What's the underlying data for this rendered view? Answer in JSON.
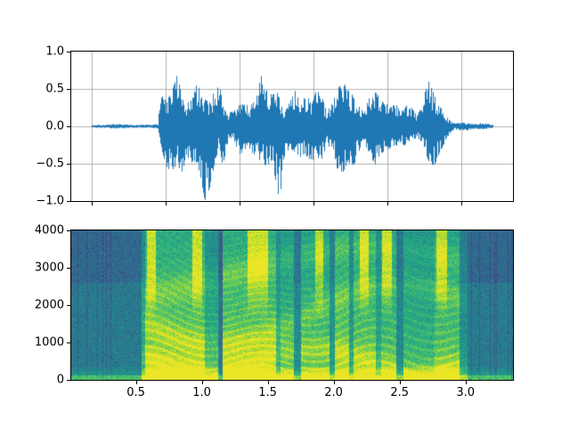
{
  "figure": {
    "background": "#ffffff",
    "waveform_color": "#1f77b4",
    "grid_color": "#b0b0b0",
    "spine_color": "#000000",
    "tick_label_color": "#000000"
  },
  "chart_data": [
    {
      "type": "line",
      "title": "",
      "xlabel": "",
      "ylabel": "",
      "description": "speech audio waveform, amplitude vs sample index",
      "line_color": "#1f77b4",
      "grid": true,
      "x_axis": {
        "ticks": [
          0,
          10000,
          20000,
          30000,
          40000,
          50000
        ],
        "tick_labels_visible": false,
        "n_samples": 54320,
        "margin": 0.05
      },
      "y_axis": {
        "ticks": [
          1.0,
          0.5,
          0.0,
          -0.5,
          -1.0
        ],
        "tick_labels": [
          "1.0",
          "0.5",
          "0.0",
          "−0.5",
          "−1.0"
        ],
        "ylim": [
          -1.0,
          1.0
        ],
        "grid_values": [
          0.5,
          0.0,
          -0.5
        ]
      },
      "envelope": {
        "duration_s": 3.39,
        "t": [
          0.0,
          0.1,
          0.2,
          0.35,
          0.5,
          0.56,
          0.59,
          0.63,
          0.68,
          0.72,
          0.76,
          0.8,
          0.84,
          0.88,
          0.93,
          0.96,
          1.0,
          1.04,
          1.08,
          1.11,
          1.15,
          1.2,
          1.24,
          1.29,
          1.34,
          1.39,
          1.43,
          1.48,
          1.52,
          1.57,
          1.6,
          1.63,
          1.68,
          1.72,
          1.77,
          1.81,
          1.86,
          1.9,
          1.94,
          1.98,
          2.03,
          2.07,
          2.12,
          2.16,
          2.21,
          2.25,
          2.3,
          2.34,
          2.39,
          2.43,
          2.48,
          2.52,
          2.57,
          2.61,
          2.66,
          2.7,
          2.75,
          2.79,
          2.84,
          2.88,
          2.93,
          2.97,
          3.02,
          3.06,
          3.12,
          3.18,
          3.24,
          3.3,
          3.35,
          3.39
        ],
        "upper": [
          0.02,
          0.02,
          0.03,
          0.02,
          0.02,
          0.03,
          0.65,
          0.3,
          0.5,
          0.66,
          0.42,
          0.32,
          0.42,
          0.55,
          0.48,
          0.35,
          0.32,
          0.5,
          0.55,
          0.25,
          0.15,
          0.22,
          0.28,
          0.3,
          0.26,
          0.38,
          0.68,
          0.5,
          0.42,
          0.45,
          0.35,
          0.18,
          0.35,
          0.48,
          0.32,
          0.42,
          0.3,
          0.5,
          0.42,
          0.2,
          0.3,
          0.5,
          0.58,
          0.5,
          0.38,
          0.28,
          0.18,
          0.38,
          0.46,
          0.4,
          0.35,
          0.25,
          0.3,
          0.18,
          0.28,
          0.24,
          0.14,
          0.3,
          0.62,
          0.45,
          0.3,
          0.18,
          0.08,
          0.04,
          0.05,
          0.04,
          0.03,
          0.05,
          0.03,
          0.02
        ],
        "lower": [
          -0.02,
          -0.02,
          -0.03,
          -0.02,
          -0.02,
          -0.03,
          -0.3,
          -0.55,
          -0.6,
          -0.5,
          -0.62,
          -0.38,
          -0.45,
          -0.6,
          -0.8,
          -1.0,
          -0.8,
          -0.45,
          -0.3,
          -0.55,
          -0.2,
          -0.18,
          -0.35,
          -0.45,
          -0.3,
          -0.42,
          -0.5,
          -0.52,
          -0.48,
          -0.85,
          -0.97,
          -0.35,
          -0.3,
          -0.35,
          -0.42,
          -0.38,
          -0.45,
          -0.4,
          -0.45,
          -0.25,
          -0.3,
          -0.55,
          -0.62,
          -0.48,
          -0.52,
          -0.35,
          -0.22,
          -0.35,
          -0.5,
          -0.38,
          -0.32,
          -0.28,
          -0.25,
          -0.22,
          -0.28,
          -0.2,
          -0.14,
          -0.25,
          -0.45,
          -0.58,
          -0.38,
          -0.25,
          -0.1,
          -0.04,
          -0.05,
          -0.05,
          -0.03,
          -0.04,
          -0.03,
          -0.02
        ]
      }
    },
    {
      "type": "heatmap",
      "title": "",
      "xlabel": "",
      "ylabel": "",
      "description": "spectrogram of the same speech signal, viridis colormap",
      "colormap": "viridis",
      "viridis_anchors": [
        "#440154",
        "#482878",
        "#3e4a89",
        "#31688e",
        "#26828e",
        "#1f9e89",
        "#35b779",
        "#6ece58",
        "#b5de2b",
        "#fde725"
      ],
      "x_axis": {
        "ticks": [
          0.5,
          1.0,
          1.5,
          2.0,
          2.5,
          3.0
        ],
        "tick_labels": [
          "0.5",
          "1.0",
          "1.5",
          "2.0",
          "2.5",
          "3.0"
        ],
        "xlim": [
          0.01,
          3.36
        ]
      },
      "y_axis": {
        "ticks": [
          0,
          1000,
          2000,
          3000,
          4000
        ],
        "tick_labels": [
          "0",
          "1000",
          "2000",
          "3000",
          "4000"
        ],
        "ylim": [
          0,
          4000
        ]
      },
      "speech_segments": [
        [
          0.01,
          0.54,
          0.05
        ],
        [
          0.54,
          0.57,
          0.5
        ],
        [
          0.57,
          1.02,
          1.0
        ],
        [
          1.02,
          1.12,
          0.6
        ],
        [
          1.12,
          1.16,
          0.12
        ],
        [
          1.16,
          1.56,
          1.0
        ],
        [
          1.56,
          1.6,
          0.5
        ],
        [
          1.6,
          1.7,
          0.75
        ],
        [
          1.7,
          1.75,
          0.2
        ],
        [
          1.75,
          1.97,
          0.8
        ],
        [
          1.97,
          2.01,
          0.3
        ],
        [
          2.01,
          2.12,
          0.95
        ],
        [
          2.12,
          2.15,
          0.4
        ],
        [
          2.15,
          2.32,
          0.9
        ],
        [
          2.32,
          2.36,
          0.5
        ],
        [
          2.36,
          2.48,
          0.8
        ],
        [
          2.48,
          2.53,
          0.2
        ],
        [
          2.53,
          2.77,
          0.65
        ],
        [
          2.77,
          2.96,
          0.85
        ],
        [
          2.96,
          3.02,
          0.3
        ],
        [
          3.02,
          3.36,
          0.06
        ]
      ],
      "fricative_windows": [
        [
          0.58,
          0.65
        ],
        [
          0.93,
          1.0
        ],
        [
          1.35,
          1.5
        ],
        [
          1.86,
          1.92
        ],
        [
          2.2,
          2.27
        ],
        [
          2.37,
          2.44
        ],
        [
          2.78,
          2.86
        ]
      ]
    }
  ]
}
